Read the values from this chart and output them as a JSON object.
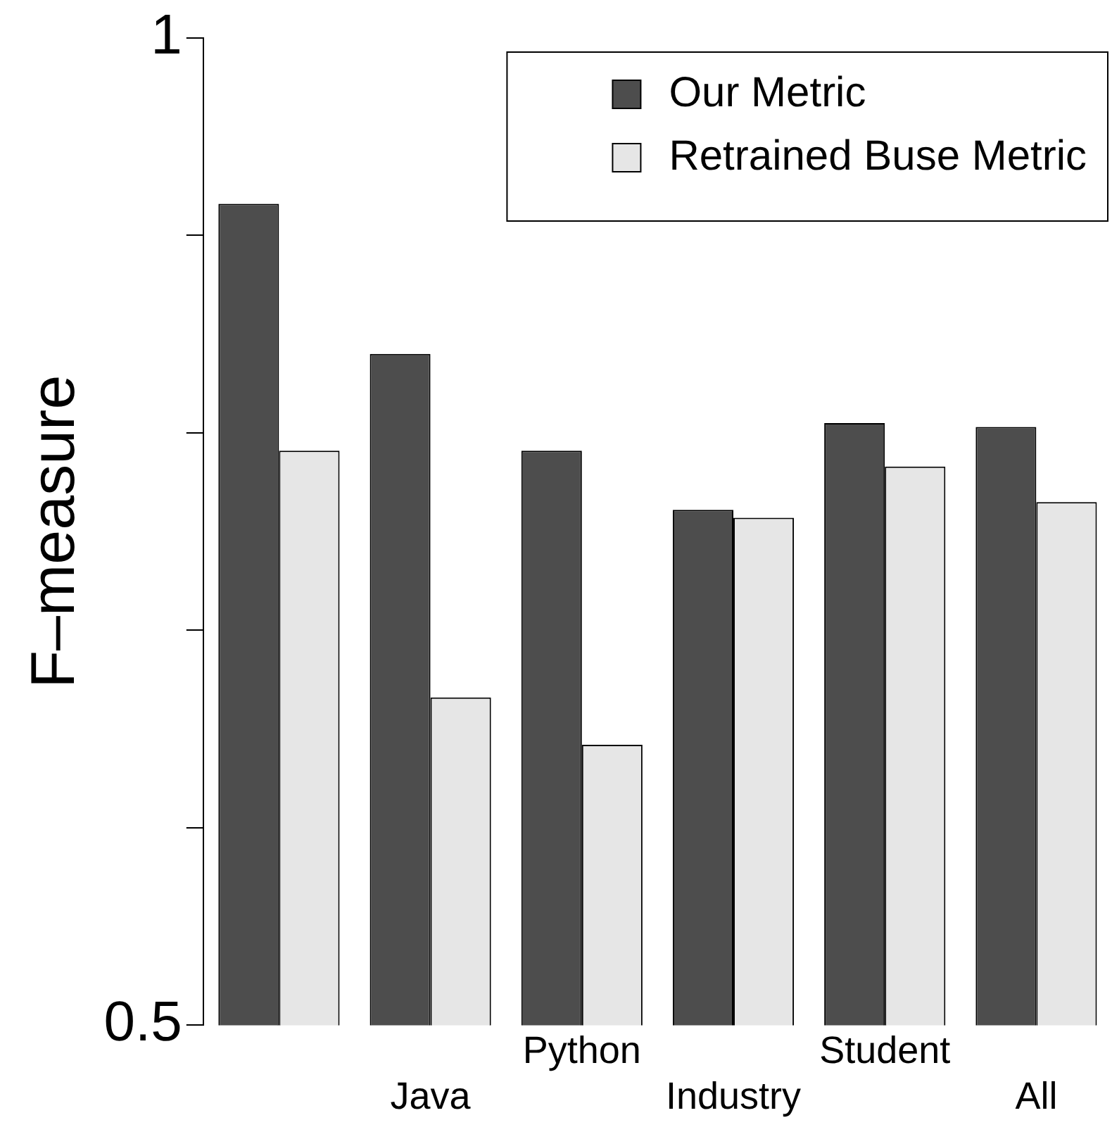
{
  "chart_data": {
    "type": "bar",
    "ylabel": "F–measure",
    "categories": [
      null,
      "Java",
      "Python",
      "Industry",
      "Student",
      "All"
    ],
    "series": [
      {
        "name": "Our Metric",
        "color": "#4d4d4d",
        "values": [
          0.916,
          0.84,
          0.791,
          0.761,
          0.805,
          0.803
        ]
      },
      {
        "name": "Retrained Buse Metric",
        "color": "#e6e6e6",
        "values": [
          0.791,
          0.666,
          0.642,
          0.757,
          0.783,
          0.765
        ]
      }
    ],
    "ylim": [
      0.5,
      1
    ],
    "yticks": [
      0.5,
      {
        "value": 0.6,
        "label": null
      },
      {
        "value": 0.7,
        "label": null
      },
      {
        "value": 0.8,
        "label": null
      },
      {
        "value": 0.9,
        "label": null
      },
      1
    ],
    "grid": false,
    "legend": "top right"
  }
}
